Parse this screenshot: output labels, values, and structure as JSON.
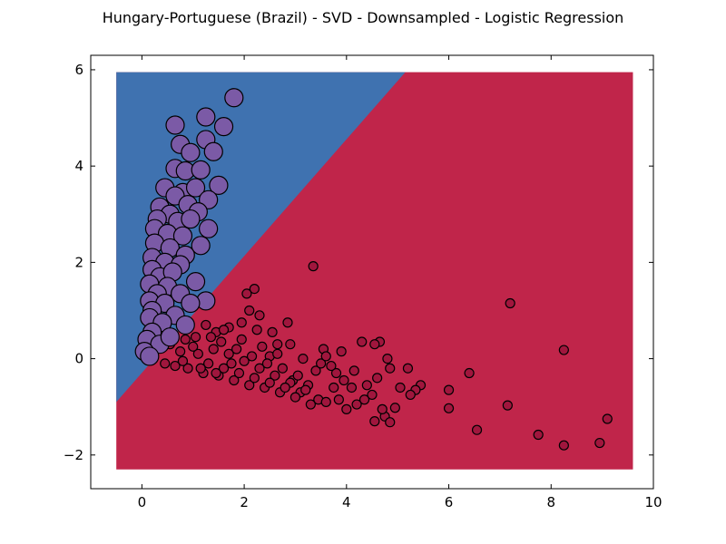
{
  "chart_data": {
    "type": "scatter",
    "title": "Hungary-Portuguese (Brazil) - SVD - Downsampled - Logistic Regression",
    "xlabel": "",
    "ylabel": "",
    "xlim": [
      -1,
      10
    ],
    "ylim": [
      -2.7,
      6.3
    ],
    "x_ticks": [
      0,
      2,
      4,
      6,
      8,
      10
    ],
    "y_ticks": [
      -2,
      0,
      2,
      4,
      6
    ],
    "x_tick_labels": [
      "0",
      "2",
      "4",
      "6",
      "8",
      "10"
    ],
    "y_tick_labels": [
      "−2",
      "0",
      "2",
      "4",
      "6"
    ],
    "grid": false,
    "decision_regions": {
      "extent": {
        "x": [
          -0.5,
          9.6
        ],
        "y": [
          -2.3,
          5.95
        ]
      },
      "boundary": [
        [
          -0.5,
          -0.9
        ],
        [
          5.15,
          5.95
        ]
      ],
      "upper_color": "#3f72b0",
      "lower_color": "#c0254a"
    },
    "series": [
      {
        "color": "#7b5aa6",
        "size": "large",
        "points": [
          [
            1.8,
            5.42
          ],
          [
            0.65,
            4.85
          ],
          [
            1.25,
            5.02
          ],
          [
            1.6,
            4.82
          ],
          [
            0.75,
            4.45
          ],
          [
            0.95,
            4.28
          ],
          [
            1.25,
            4.55
          ],
          [
            1.4,
            4.3
          ],
          [
            0.65,
            3.95
          ],
          [
            0.85,
            3.9
          ],
          [
            1.15,
            3.92
          ],
          [
            1.5,
            3.6
          ],
          [
            0.45,
            3.55
          ],
          [
            0.8,
            3.45
          ],
          [
            1.05,
            3.55
          ],
          [
            0.65,
            3.38
          ],
          [
            1.3,
            3.3
          ],
          [
            0.35,
            3.15
          ],
          [
            0.9,
            3.2
          ],
          [
            0.55,
            3.0
          ],
          [
            1.1,
            3.05
          ],
          [
            0.3,
            2.9
          ],
          [
            0.7,
            2.85
          ],
          [
            0.95,
            2.9
          ],
          [
            1.3,
            2.7
          ],
          [
            0.25,
            2.7
          ],
          [
            0.5,
            2.6
          ],
          [
            0.8,
            2.55
          ],
          [
            1.15,
            2.35
          ],
          [
            0.25,
            2.4
          ],
          [
            0.55,
            2.3
          ],
          [
            0.85,
            2.15
          ],
          [
            0.2,
            2.1
          ],
          [
            0.45,
            2.0
          ],
          [
            0.75,
            1.95
          ],
          [
            0.2,
            1.85
          ],
          [
            0.35,
            1.7
          ],
          [
            0.6,
            1.8
          ],
          [
            1.05,
            1.6
          ],
          [
            0.15,
            1.55
          ],
          [
            0.5,
            1.5
          ],
          [
            0.3,
            1.35
          ],
          [
            0.75,
            1.35
          ],
          [
            0.15,
            1.2
          ],
          [
            0.45,
            1.15
          ],
          [
            1.25,
            1.2
          ],
          [
            0.95,
            1.15
          ],
          [
            0.2,
            1.0
          ],
          [
            0.65,
            0.9
          ],
          [
            0.15,
            0.85
          ],
          [
            0.4,
            0.75
          ],
          [
            0.2,
            0.55
          ],
          [
            0.85,
            0.7
          ],
          [
            0.1,
            0.4
          ],
          [
            0.35,
            0.3
          ],
          [
            0.05,
            0.15
          ],
          [
            0.15,
            0.05
          ],
          [
            0.55,
            0.45
          ]
        ]
      },
      {
        "color": "#a0163d",
        "size": "small",
        "points": [
          [
            3.35,
            1.92
          ],
          [
            7.2,
            1.15
          ],
          [
            8.25,
            0.18
          ],
          [
            9.1,
            -1.25
          ],
          [
            8.95,
            -1.75
          ],
          [
            8.25,
            -1.8
          ],
          [
            7.75,
            -1.58
          ],
          [
            6.55,
            -1.48
          ],
          [
            7.15,
            -0.97
          ],
          [
            6.4,
            -0.3
          ],
          [
            6.0,
            -0.65
          ],
          [
            6.0,
            -1.03
          ],
          [
            5.45,
            -0.55
          ],
          [
            5.35,
            -0.65
          ],
          [
            5.25,
            -0.75
          ],
          [
            5.2,
            -0.2
          ],
          [
            5.05,
            -0.6
          ],
          [
            4.95,
            -1.02
          ],
          [
            4.75,
            -1.2
          ],
          [
            4.55,
            -1.3
          ],
          [
            4.7,
            -1.05
          ],
          [
            4.85,
            -1.32
          ],
          [
            4.65,
            0.35
          ],
          [
            4.55,
            0.3
          ],
          [
            4.3,
            0.35
          ],
          [
            4.8,
            0.0
          ],
          [
            4.85,
            -0.2
          ],
          [
            4.6,
            -0.4
          ],
          [
            4.5,
            -0.75
          ],
          [
            4.35,
            -0.85
          ],
          [
            4.2,
            -0.95
          ],
          [
            4.0,
            -1.05
          ],
          [
            3.85,
            -0.85
          ],
          [
            4.1,
            -0.6
          ],
          [
            3.95,
            -0.45
          ],
          [
            3.8,
            -0.3
          ],
          [
            3.9,
            0.15
          ],
          [
            3.55,
            0.2
          ],
          [
            3.7,
            -0.15
          ],
          [
            3.4,
            -0.25
          ],
          [
            3.25,
            -0.55
          ],
          [
            3.45,
            -0.85
          ],
          [
            3.6,
            -0.9
          ],
          [
            3.3,
            -0.95
          ],
          [
            3.1,
            -0.7
          ],
          [
            2.95,
            -0.45
          ],
          [
            2.85,
            0.75
          ],
          [
            2.65,
            0.3
          ],
          [
            2.5,
            0.05
          ],
          [
            2.3,
            0.9
          ],
          [
            2.2,
            1.45
          ],
          [
            2.05,
            1.35
          ],
          [
            2.1,
            1.0
          ],
          [
            1.95,
            0.75
          ],
          [
            1.7,
            0.65
          ],
          [
            1.45,
            0.55
          ],
          [
            1.25,
            0.7
          ],
          [
            1.05,
            0.45
          ],
          [
            0.85,
            0.4
          ],
          [
            0.55,
            0.3
          ],
          [
            0.45,
            -0.1
          ],
          [
            0.65,
            -0.15
          ],
          [
            0.9,
            -0.2
          ],
          [
            1.2,
            -0.3
          ],
          [
            1.5,
            -0.35
          ],
          [
            1.8,
            -0.45
          ],
          [
            2.1,
            -0.55
          ],
          [
            2.4,
            -0.6
          ],
          [
            2.7,
            -0.7
          ],
          [
            3.0,
            -0.8
          ],
          [
            3.2,
            -0.65
          ],
          [
            2.9,
            -0.5
          ],
          [
            2.6,
            -0.35
          ],
          [
            2.3,
            -0.2
          ],
          [
            2.0,
            -0.05
          ],
          [
            1.7,
            0.1
          ],
          [
            1.4,
            0.2
          ],
          [
            1.1,
            0.1
          ],
          [
            0.8,
            -0.05
          ],
          [
            1.3,
            -0.1
          ],
          [
            1.6,
            -0.2
          ],
          [
            1.9,
            -0.3
          ],
          [
            2.2,
            -0.4
          ],
          [
            2.5,
            -0.5
          ],
          [
            2.8,
            -0.6
          ],
          [
            3.05,
            -0.35
          ],
          [
            2.75,
            -0.2
          ],
          [
            2.45,
            -0.1
          ],
          [
            2.15,
            0.05
          ],
          [
            1.85,
            0.2
          ],
          [
            1.55,
            0.35
          ],
          [
            1.35,
            0.45
          ],
          [
            1.95,
            0.4
          ],
          [
            2.35,
            0.25
          ],
          [
            2.65,
            0.1
          ],
          [
            3.15,
            0.0
          ],
          [
            3.5,
            -0.1
          ],
          [
            3.75,
            -0.6
          ],
          [
            4.15,
            -0.25
          ],
          [
            4.4,
            -0.55
          ],
          [
            3.6,
            0.05
          ],
          [
            2.9,
            0.3
          ],
          [
            2.55,
            0.55
          ],
          [
            2.25,
            0.6
          ],
          [
            1.6,
            0.6
          ],
          [
            1.0,
            0.25
          ],
          [
            0.75,
            0.15
          ],
          [
            1.15,
            -0.2
          ],
          [
            1.45,
            -0.3
          ],
          [
            1.75,
            -0.1
          ]
        ]
      }
    ]
  }
}
